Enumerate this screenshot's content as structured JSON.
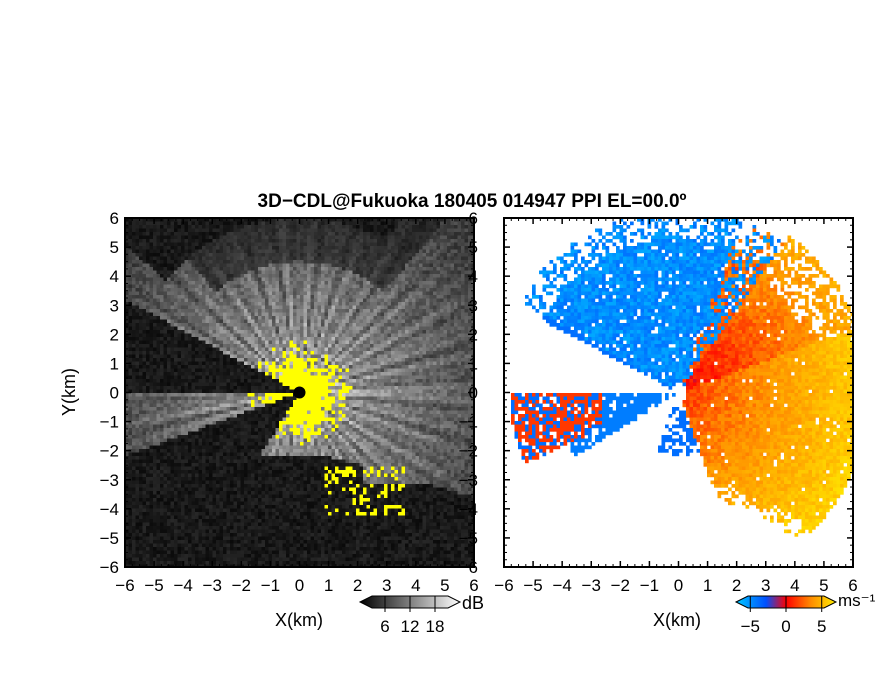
{
  "title": "3D−CDL@Fukuoka 180405 014947 PPI EL=00.0º",
  "chart_data": [
    {
      "type": "heatmap",
      "panel": "reflectivity",
      "xlabel": "X(km)",
      "ylabel": "Y(km)",
      "xlim": [
        -6,
        6
      ],
      "ylim": [
        -6,
        6
      ],
      "x_ticks": [
        "−6",
        "−5",
        "−4",
        "−3",
        "−2",
        "−1",
        "0",
        "1",
        "2",
        "3",
        "4",
        "5",
        "6"
      ],
      "y_ticks": [
        "−6",
        "−5",
        "−4",
        "−3",
        "−2",
        "−1",
        "0",
        "1",
        "2",
        "3",
        "4",
        "5",
        "6"
      ],
      "colorbar": {
        "unit": "dB",
        "ticks": [
          "6",
          "12",
          "18"
        ],
        "range": [
          0,
          24
        ],
        "colors": [
          "#000000",
          "#ffffff"
        ]
      },
      "highlight_color": "#ffff00",
      "blocked_sectors_deg": [
        [
          200,
          238
        ],
        [
          152,
          180
        ]
      ],
      "blocked_region_y_below_km": -2.2,
      "grid": false
    },
    {
      "type": "heatmap",
      "panel": "doppler_velocity",
      "xlabel": "X(km)",
      "xlim": [
        -6,
        6
      ],
      "ylim": [
        -6,
        6
      ],
      "x_ticks": [
        "−6",
        "−5",
        "−4",
        "−3",
        "−2",
        "−1",
        "0",
        "1",
        "2",
        "3",
        "4",
        "5",
        "6"
      ],
      "colorbar": {
        "unit": "ms⁻¹",
        "ticks": [
          "−5",
          "0",
          "5"
        ],
        "range": [
          -7,
          7
        ],
        "colors": [
          "#00c8ff",
          "#0050ff",
          "#ff0000",
          "#ff8c00",
          "#ffee00"
        ]
      },
      "grid": false
    }
  ]
}
